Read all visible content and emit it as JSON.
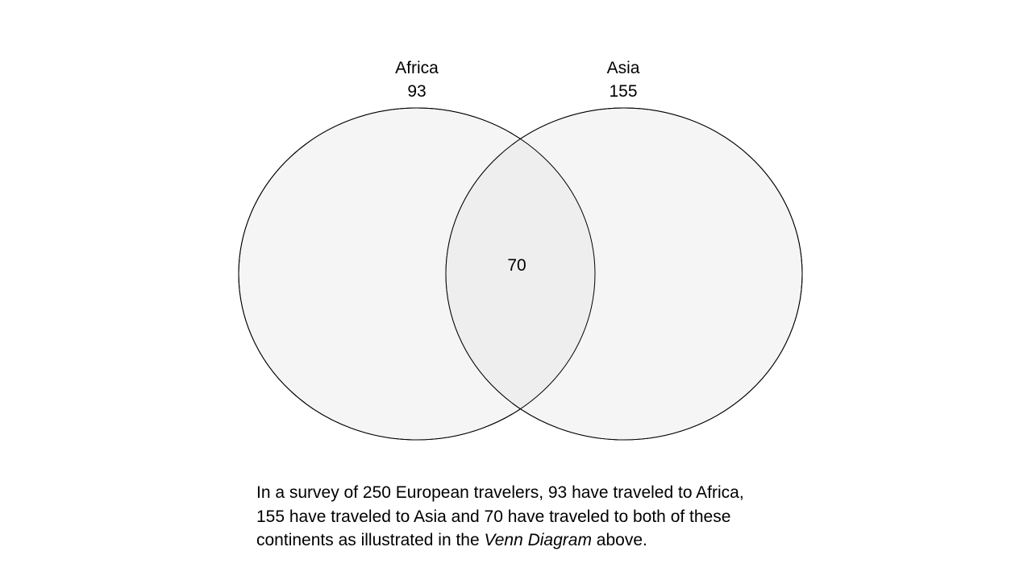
{
  "colors": {
    "circle_fill": "#f5f5f5",
    "intersection_fill": "#eeeeee",
    "circle_stroke": "#000000"
  },
  "sets": [
    {
      "name": "Africa",
      "count": "93"
    },
    {
      "name": "Asia",
      "count": "155"
    }
  ],
  "intersection": {
    "count": "70"
  },
  "caption": {
    "line1": "In a survey of 250 European travelers, 93 have traveled to Africa,",
    "line2": "155 have traveled to Asia and 70 have traveled to both of these",
    "line3_before": "continents as illustrated in the ",
    "line3_emphasis": "Venn Diagram",
    "line3_after": " above."
  }
}
